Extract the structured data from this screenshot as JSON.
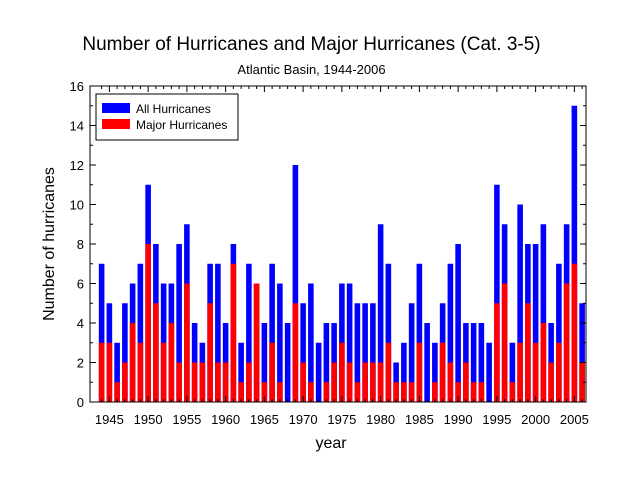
{
  "chart_data": {
    "type": "bar",
    "title": "Number of Hurricanes and Major Hurricanes (Cat. 3-5)",
    "subtitle": "Atlantic Basin, 1944-2006",
    "xlabel": "year",
    "ylabel": "Number of hurricanes",
    "ylim": [
      0,
      16
    ],
    "yticks": [
      0,
      2,
      4,
      6,
      8,
      10,
      12,
      14,
      16
    ],
    "xticks": [
      1945,
      1950,
      1955,
      1960,
      1965,
      1970,
      1975,
      1980,
      1985,
      1990,
      1995,
      2000,
      2005
    ],
    "xlim": [
      1942.5,
      2006.5
    ],
    "legend_position": "top-left",
    "x": [
      1944,
      1945,
      1946,
      1947,
      1948,
      1949,
      1950,
      1951,
      1952,
      1953,
      1954,
      1955,
      1956,
      1957,
      1958,
      1959,
      1960,
      1961,
      1962,
      1963,
      1964,
      1965,
      1966,
      1967,
      1968,
      1969,
      1970,
      1971,
      1972,
      1973,
      1974,
      1975,
      1976,
      1977,
      1978,
      1979,
      1980,
      1981,
      1982,
      1983,
      1984,
      1985,
      1986,
      1987,
      1988,
      1989,
      1990,
      1991,
      1992,
      1993,
      1994,
      1995,
      1996,
      1997,
      1998,
      1999,
      2000,
      2001,
      2002,
      2003,
      2004,
      2005,
      2006
    ],
    "series": [
      {
        "name": "All Hurricanes",
        "color": "#0000ff",
        "values": [
          7,
          5,
          3,
          5,
          6,
          7,
          11,
          8,
          6,
          6,
          8,
          9,
          4,
          3,
          7,
          7,
          4,
          8,
          3,
          7,
          6,
          4,
          7,
          6,
          4,
          12,
          5,
          6,
          3,
          4,
          4,
          6,
          6,
          5,
          5,
          5,
          9,
          7,
          2,
          3,
          5,
          7,
          4,
          3,
          5,
          7,
          8,
          4,
          4,
          4,
          3,
          11,
          9,
          3,
          10,
          8,
          8,
          9,
          4,
          7,
          9,
          15,
          5
        ]
      },
      {
        "name": "Major Hurricanes",
        "color": "#ff0000",
        "values": [
          3,
          3,
          1,
          2,
          4,
          3,
          8,
          5,
          3,
          4,
          2,
          6,
          2,
          2,
          5,
          2,
          2,
          7,
          1,
          2,
          6,
          1,
          3,
          1,
          0,
          5,
          2,
          1,
          0,
          1,
          2,
          3,
          2,
          1,
          2,
          2,
          2,
          3,
          1,
          1,
          1,
          3,
          0,
          1,
          3,
          2,
          1,
          2,
          1,
          1,
          0,
          5,
          6,
          1,
          3,
          5,
          3,
          4,
          2,
          3,
          6,
          7,
          2
        ]
      }
    ]
  }
}
